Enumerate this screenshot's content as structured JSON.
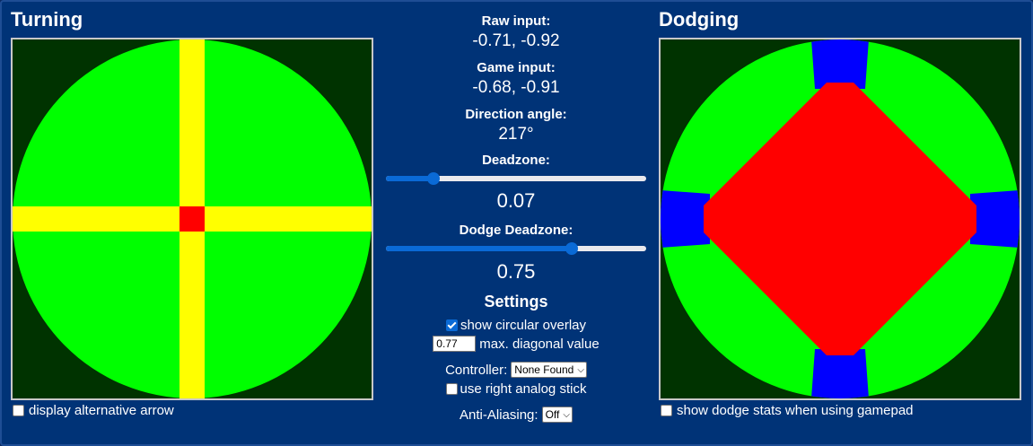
{
  "turning": {
    "title": "Turning",
    "alt_arrow_label": "display alternative arrow",
    "alt_arrow_checked": false
  },
  "dodging": {
    "title": "Dodging",
    "dodge_stats_label": "show dodge stats when using gamepad",
    "dodge_stats_checked": false
  },
  "readouts": {
    "raw_label": "Raw input:",
    "raw_value": "-0.71, -0.92",
    "game_label": "Game input:",
    "game_value": "-0.68, -0.91",
    "angle_label": "Direction angle:",
    "angle_value": "217°"
  },
  "deadzone": {
    "label": "Deadzone:",
    "value": "0.07",
    "fraction": 0.07
  },
  "dodge_deadzone": {
    "label": "Dodge Deadzone:",
    "value": "0.75",
    "fraction": 0.75
  },
  "settings": {
    "title": "Settings",
    "circular_overlay_label": "show circular overlay",
    "circular_overlay_checked": true,
    "max_diag_value": "0.77",
    "max_diag_label": "max. diagonal value",
    "controller_label": "Controller:",
    "controller_selected": "None Found",
    "right_stick_label": "use right analog stick",
    "right_stick_checked": false,
    "aa_label": "Anti-Aliasing:",
    "aa_selected": "Off"
  },
  "colors": {
    "background": "#003377",
    "outside": "#003300",
    "zone_green": "#00ff00",
    "zone_yellow": "#ffff00",
    "zone_red": "#ff0000",
    "zone_blue": "#0000ff",
    "accent": "#0a6ad6"
  }
}
